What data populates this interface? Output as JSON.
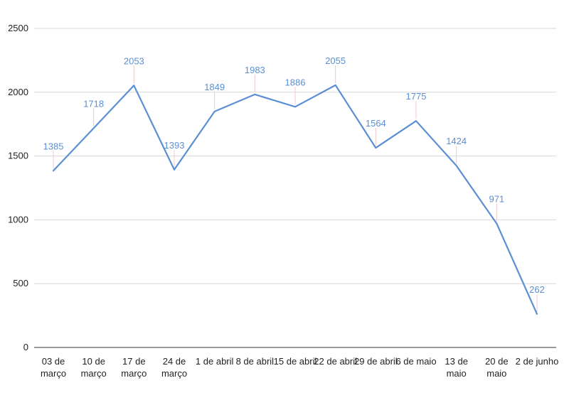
{
  "chart_data": {
    "type": "line",
    "title": "",
    "xlabel": "",
    "ylabel": "",
    "ylim": [
      0,
      2500
    ],
    "yticks": [
      0,
      500,
      1000,
      1500,
      2000,
      2500
    ],
    "grid": true,
    "legend": "none",
    "categories": [
      [
        "03 de",
        "março"
      ],
      [
        "10 de",
        "março"
      ],
      [
        "17 de",
        "março"
      ],
      [
        "24 de",
        "março"
      ],
      [
        "1 de abril"
      ],
      [
        "8 de abril"
      ],
      [
        "15 de abril"
      ],
      [
        "22 de abril"
      ],
      [
        "29 de abril"
      ],
      [
        "6 de maio"
      ],
      [
        "13 de",
        "maio"
      ],
      [
        "20 de",
        "maio"
      ],
      [
        "2 de junho"
      ]
    ],
    "series": [
      {
        "values": [
          1385,
          1718,
          2053,
          1393,
          1849,
          1983,
          1886,
          2055,
          1564,
          1775,
          1424,
          971,
          262
        ],
        "color": "#5b8fd4"
      }
    ]
  }
}
